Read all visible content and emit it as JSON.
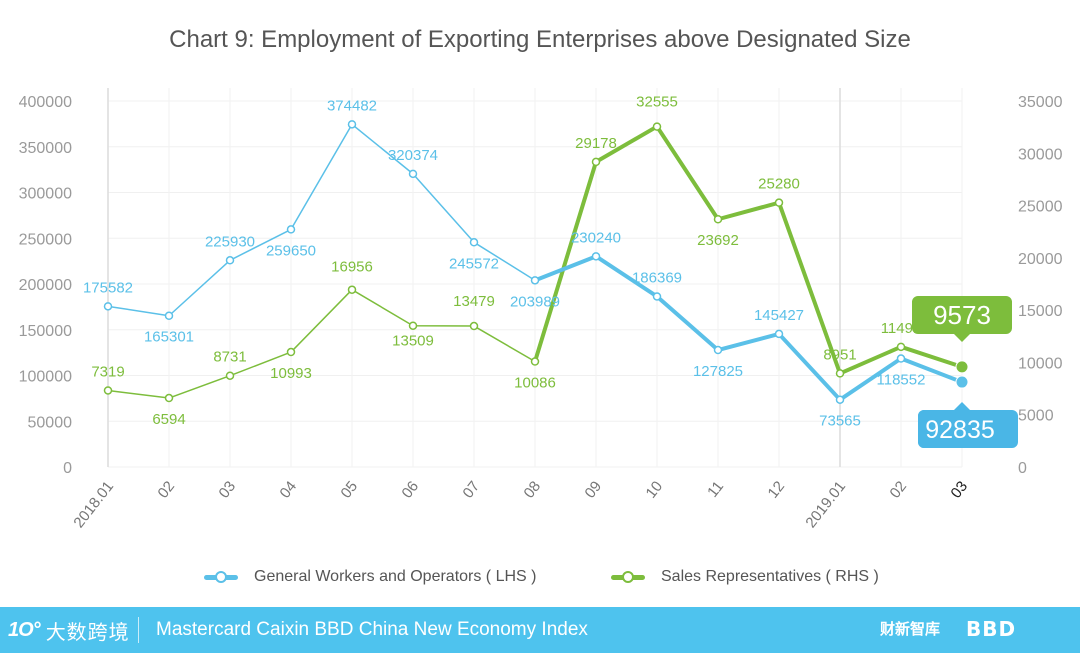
{
  "title": "Chart 9: Employment of Exporting Enterprises above Designated Size",
  "chart_data": {
    "type": "line",
    "categories": [
      "2018.01",
      "02",
      "03",
      "04",
      "05",
      "06",
      "07",
      "08",
      "09",
      "10",
      "11",
      "12",
      "2019.01",
      "02",
      "03"
    ],
    "series": [
      {
        "name": "General Workers and Operators ( LHS )",
        "axis": "left",
        "color": "#5bc0e8",
        "values": [
          175582,
          165301,
          225930,
          259650,
          374482,
          320374,
          245572,
          203989,
          230240,
          186369,
          127825,
          145427,
          73565,
          118552,
          92835
        ],
        "labels": [
          "175582",
          "165301",
          "225930",
          "259650",
          "374482",
          "320374",
          "245572",
          "203989",
          "230240",
          "186369",
          "127825",
          "145427",
          "73565",
          "118552",
          "92835"
        ]
      },
      {
        "name": "Sales Representatives ( RHS )",
        "axis": "right",
        "color": "#7dbd3c",
        "values": [
          7319,
          6594,
          8731,
          10993,
          16956,
          13509,
          13479,
          10086,
          29178,
          32555,
          23692,
          25280,
          8951,
          11491,
          9573
        ],
        "labels": [
          "7319",
          "6594",
          "8731",
          "10993",
          "16956",
          "13509",
          "13479",
          "10086",
          "29178",
          "32555",
          "23692",
          "25280",
          "8951",
          "11491",
          "9573"
        ]
      }
    ],
    "left_axis": {
      "min": 0,
      "max": 400000,
      "ticks": [
        "0",
        "50000",
        "100000",
        "150000",
        "200000",
        "250000",
        "300000",
        "350000",
        "400000"
      ]
    },
    "right_axis": {
      "min": 0,
      "max": 35000,
      "ticks": [
        "0",
        "5000",
        "10000",
        "15000",
        "20000",
        "25000",
        "30000",
        "35000"
      ]
    },
    "highlight": {
      "lhs_last": "92835",
      "rhs_last": "9573"
    },
    "grid": true,
    "legend_position": "bottom"
  },
  "footer": {
    "brand_mark": "1O°",
    "brand_cn": "大数跨境",
    "source": "Mastercard Caixin BBD China New Economy Index",
    "logo_caixin": "财新智库",
    "logo_bbd": "BBD"
  }
}
